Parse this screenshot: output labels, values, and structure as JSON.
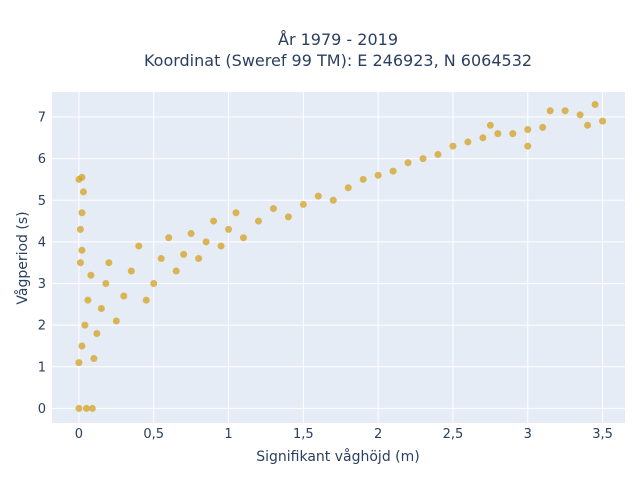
{
  "chart_data": {
    "type": "scatter",
    "title": "År 1979 - 2019",
    "subtitle": "Koordinat (Sweref 99 TM): E 246923, N 6064532",
    "xlabel": "Signifikant våghöjd (m)",
    "ylabel": "Vågperiod (s)",
    "xlim": [
      -0.18,
      3.65
    ],
    "ylim": [
      -0.35,
      7.6
    ],
    "x_ticks": [
      0,
      0.5,
      1,
      1.5,
      2,
      2.5,
      3,
      3.5
    ],
    "x_tick_labels": [
      "0",
      "0,5",
      "1",
      "1,5",
      "2",
      "2,5",
      "3",
      "3,5"
    ],
    "y_ticks": [
      0,
      1,
      2,
      3,
      4,
      5,
      6,
      7
    ],
    "y_tick_labels": [
      "0",
      "1",
      "2",
      "3",
      "4",
      "5",
      "6",
      "7"
    ],
    "grid": true,
    "background_color": "#e5ecf6",
    "marker_color": "#d4a21f",
    "series": [
      {
        "points": [
          [
            0.0,
            1.1
          ],
          [
            0.02,
            1.5
          ],
          [
            0.04,
            2.0
          ],
          [
            0.06,
            2.6
          ],
          [
            0.08,
            3.2
          ],
          [
            0.1,
            1.2
          ],
          [
            0.12,
            1.8
          ],
          [
            0.15,
            2.4
          ],
          [
            0.18,
            3.0
          ],
          [
            0.2,
            3.5
          ],
          [
            0.25,
            2.1
          ],
          [
            0.3,
            2.7
          ],
          [
            0.35,
            3.3
          ],
          [
            0.4,
            3.9
          ],
          [
            0.45,
            2.6
          ],
          [
            0.5,
            3.0
          ],
          [
            0.55,
            3.6
          ],
          [
            0.6,
            4.1
          ],
          [
            0.65,
            3.3
          ],
          [
            0.7,
            3.7
          ],
          [
            0.75,
            4.2
          ],
          [
            0.8,
            3.6
          ],
          [
            0.85,
            4.0
          ],
          [
            0.9,
            4.5
          ],
          [
            0.95,
            3.9
          ],
          [
            1.0,
            4.3
          ],
          [
            1.05,
            4.7
          ],
          [
            1.1,
            4.1
          ],
          [
            1.2,
            4.5
          ],
          [
            1.3,
            4.8
          ],
          [
            1.4,
            4.6
          ],
          [
            1.5,
            4.9
          ],
          [
            1.6,
            5.1
          ],
          [
            1.7,
            5.0
          ],
          [
            1.8,
            5.3
          ],
          [
            1.9,
            5.5
          ],
          [
            2.0,
            5.6
          ],
          [
            2.1,
            5.7
          ],
          [
            2.2,
            5.9
          ],
          [
            2.3,
            6.0
          ],
          [
            2.4,
            6.1
          ],
          [
            2.5,
            6.3
          ],
          [
            2.6,
            6.4
          ],
          [
            2.7,
            6.5
          ],
          [
            2.8,
            6.6
          ],
          [
            2.9,
            6.6
          ],
          [
            3.0,
            6.7
          ],
          [
            3.1,
            6.75
          ],
          [
            3.15,
            7.15
          ],
          [
            3.25,
            7.15
          ],
          [
            3.35,
            7.05
          ],
          [
            3.4,
            6.8
          ],
          [
            3.45,
            7.3
          ],
          [
            3.5,
            6.9
          ],
          [
            0.0,
            5.5
          ],
          [
            0.02,
            5.55
          ],
          [
            0.03,
            5.2
          ],
          [
            0.02,
            4.7
          ],
          [
            0.01,
            4.3
          ],
          [
            0.02,
            3.8
          ],
          [
            0.01,
            3.5
          ],
          [
            0.0,
            0.0
          ],
          [
            0.05,
            0.0
          ],
          [
            0.09,
            0.0
          ],
          [
            3.0,
            6.3
          ],
          [
            2.75,
            6.8
          ]
        ]
      }
    ]
  }
}
